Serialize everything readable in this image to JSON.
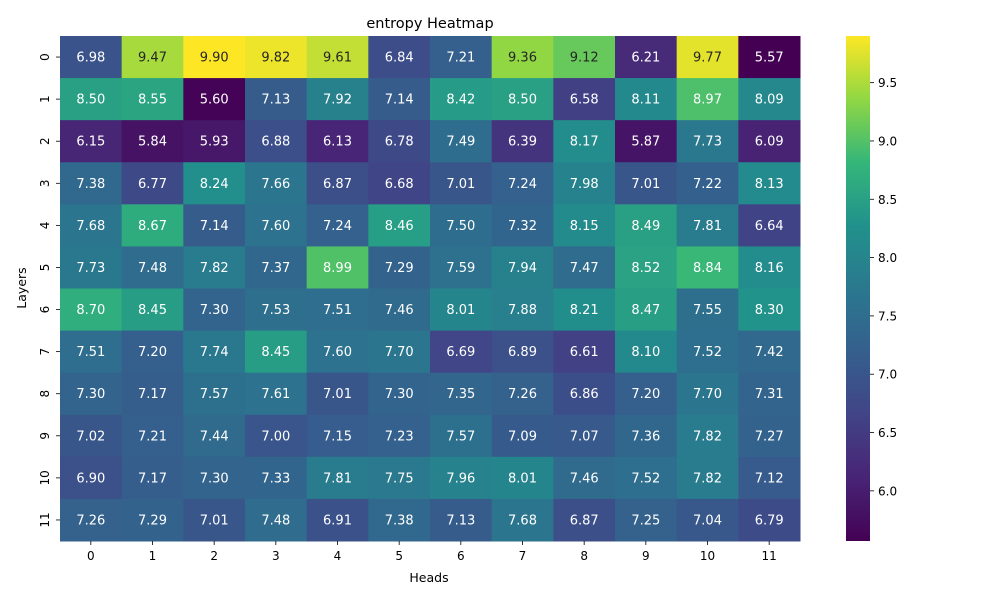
{
  "chart_data": {
    "type": "heatmap",
    "title": "entropy Heatmap",
    "xlabel": "Heads",
    "ylabel": "Layers",
    "x_categories": [
      "0",
      "1",
      "2",
      "3",
      "4",
      "5",
      "6",
      "7",
      "8",
      "9",
      "10",
      "11"
    ],
    "y_categories": [
      "0",
      "1",
      "2",
      "3",
      "4",
      "5",
      "6",
      "7",
      "8",
      "9",
      "10",
      "11"
    ],
    "values": [
      [
        6.98,
        9.47,
        9.9,
        9.82,
        9.61,
        6.84,
        7.21,
        9.36,
        9.12,
        6.21,
        9.77,
        5.57
      ],
      [
        8.5,
        8.55,
        5.6,
        7.13,
        7.92,
        7.14,
        8.42,
        8.5,
        6.58,
        8.11,
        8.97,
        8.09
      ],
      [
        6.15,
        5.84,
        5.93,
        6.88,
        6.13,
        6.78,
        7.49,
        6.39,
        8.17,
        5.87,
        7.73,
        6.09
      ],
      [
        7.38,
        6.77,
        8.24,
        7.66,
        6.87,
        6.68,
        7.01,
        7.24,
        7.98,
        7.01,
        7.22,
        8.13
      ],
      [
        7.68,
        8.67,
        7.14,
        7.6,
        7.24,
        8.46,
        7.5,
        7.32,
        8.15,
        8.49,
        7.81,
        6.64
      ],
      [
        7.73,
        7.48,
        7.82,
        7.37,
        8.99,
        7.29,
        7.59,
        7.94,
        7.47,
        8.52,
        8.84,
        8.16
      ],
      [
        8.7,
        8.45,
        7.3,
        7.53,
        7.51,
        7.46,
        8.01,
        7.88,
        8.21,
        8.47,
        7.55,
        8.3
      ],
      [
        7.51,
        7.2,
        7.74,
        8.45,
        7.6,
        7.7,
        6.69,
        6.89,
        6.61,
        8.1,
        7.52,
        7.42
      ],
      [
        7.3,
        7.17,
        7.57,
        7.61,
        7.01,
        7.3,
        7.35,
        7.26,
        6.86,
        7.2,
        7.7,
        7.31
      ],
      [
        7.02,
        7.21,
        7.44,
        7.0,
        7.15,
        7.23,
        7.57,
        7.09,
        7.07,
        7.36,
        7.82,
        7.27
      ],
      [
        6.9,
        7.17,
        7.3,
        7.33,
        7.81,
        7.75,
        7.96,
        8.01,
        7.46,
        7.52,
        7.82,
        7.12
      ],
      [
        7.26,
        7.29,
        7.01,
        7.48,
        6.91,
        7.38,
        7.13,
        7.68,
        6.87,
        7.25,
        7.04,
        6.79
      ]
    ],
    "vmin": 5.57,
    "vmax": 9.9,
    "colormap": "viridis",
    "colorbar_ticks": [
      "6.0",
      "6.5",
      "7.0",
      "7.5",
      "8.0",
      "8.5",
      "9.0",
      "9.5"
    ],
    "annotated": true,
    "annotation_format": "2 decimals"
  }
}
